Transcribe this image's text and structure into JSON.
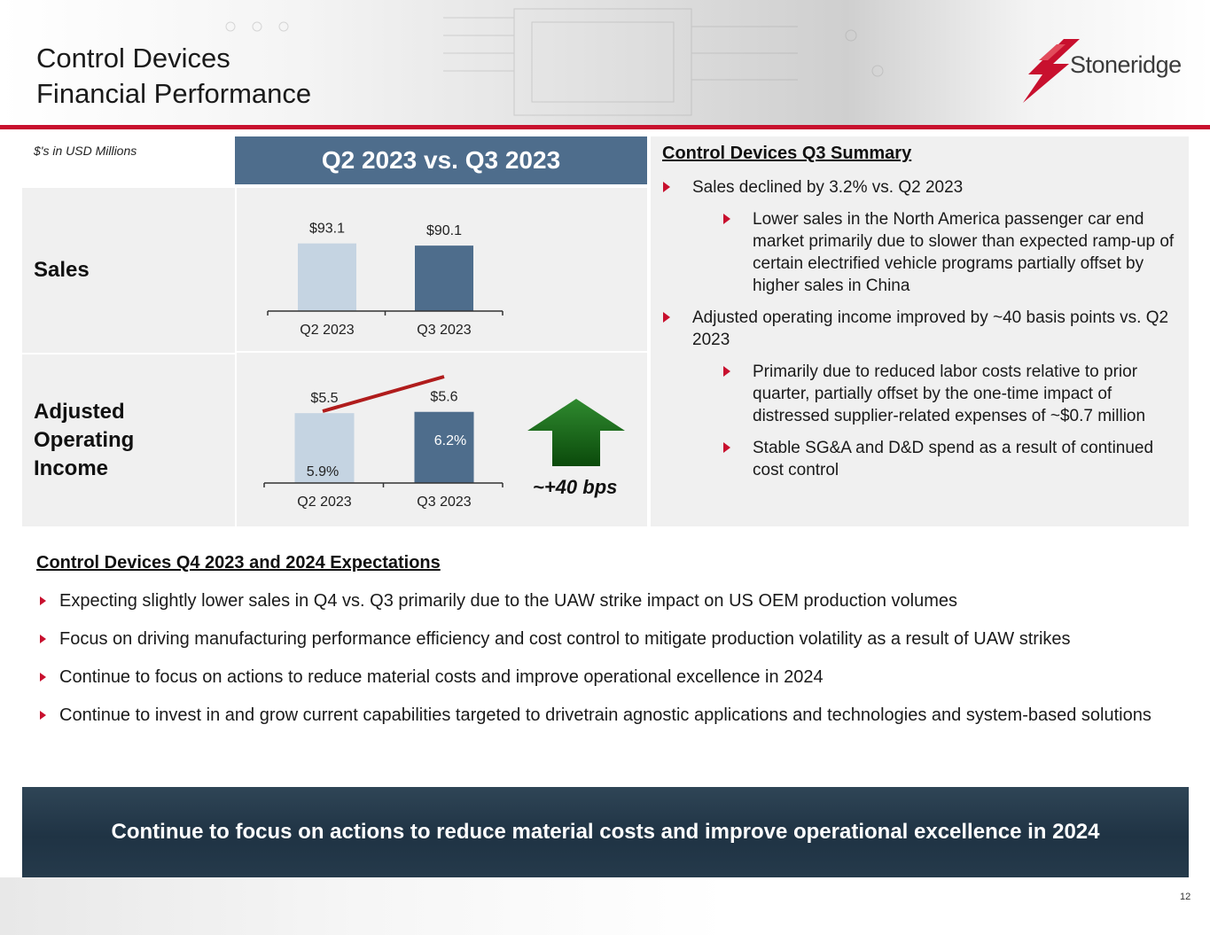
{
  "header": {
    "title_line1": "Control Devices",
    "title_line2": "Financial Performance",
    "logo_text": "Stoneridge",
    "brand_red": "#c8102e"
  },
  "units_note": "$'s in USD Millions",
  "comparison_header": "Q2 2023 vs. Q3 2023",
  "row_labels": {
    "sales": "Sales",
    "aoi_line1": "Adjusted",
    "aoi_line2": "Operating",
    "aoi_line3": "Income"
  },
  "chart_data": [
    {
      "type": "bar",
      "title": "Sales",
      "categories": [
        "Q2 2023",
        "Q3 2023"
      ],
      "values": [
        93.1,
        90.1
      ],
      "value_labels": [
        "$93.1",
        "$90.1"
      ],
      "colors": [
        "#c5d4e2",
        "#4e6d8c"
      ],
      "ylim": [
        0,
        100
      ]
    },
    {
      "type": "bar",
      "title": "Adjusted Operating Income",
      "categories": [
        "Q2 2023",
        "Q3 2023"
      ],
      "values": [
        5.5,
        5.6
      ],
      "value_labels": [
        "$5.5",
        "$5.6"
      ],
      "colors": [
        "#c5d4e2",
        "#4e6d8c"
      ],
      "ylim": [
        0,
        6
      ],
      "margin_series": {
        "name": "Adjusted operating margin",
        "values": [
          5.9,
          6.2
        ],
        "labels": [
          "5.9%",
          "6.2%"
        ],
        "color": "#b01c1c"
      },
      "annotation": "~+40 bps",
      "arrow_color": "#1f6b1f"
    }
  ],
  "summary": {
    "title": "Control Devices Q3 Summary",
    "b1": "Sales declined by 3.2% vs. Q2 2023",
    "b1_1": "Lower sales in the North America passenger car end market primarily due to slower than expected ramp-up of certain electrified vehicle programs partially offset by higher sales in China",
    "b2": "Adjusted operating income improved by ~40 basis points vs. Q2 2023",
    "b2_1": "Primarily due to reduced labor costs relative to prior quarter, partially offset by the one-time impact of distressed supplier-related expenses of ~$0.7 million",
    "b2_2": "Stable SG&A and D&D spend as a result of continued cost control"
  },
  "expectations": {
    "title": "Control Devices Q4 2023 and 2024 Expectations",
    "items": [
      "Expecting slightly lower sales in Q4 vs. Q3 primarily due to the UAW strike impact on US OEM production volumes",
      "Focus on driving manufacturing performance efficiency and cost control to mitigate production volatility as a result of UAW strikes",
      "Continue to focus on actions to reduce material costs and improve operational excellence in 2024",
      "Continue to invest in and grow current capabilities targeted to drivetrain agnostic applications and technologies and system-based solutions"
    ]
  },
  "banner": "Continue to focus on actions to reduce material costs and improve operational excellence in 2024",
  "page_number": "12"
}
